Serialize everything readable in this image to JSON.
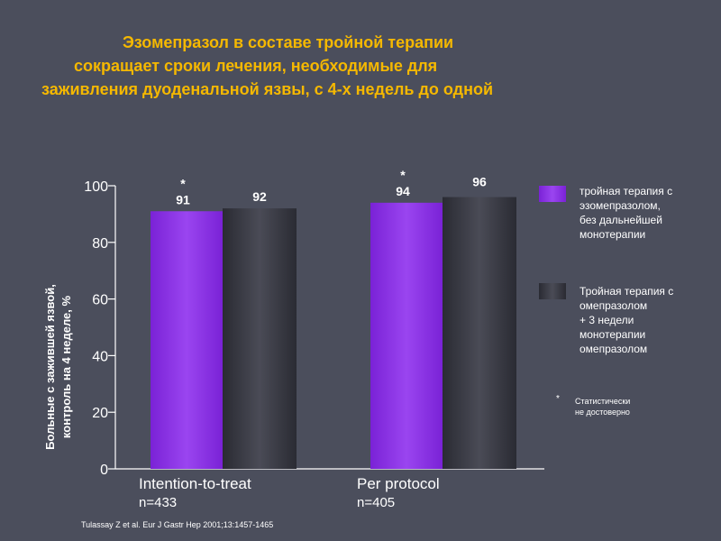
{
  "slide": {
    "title_lines": [
      "Эзомепразол в составе тройной терапии",
      "сокращает сроки лечения, необходимые для",
      "заживления дуоденальной язвы, с 4-х недель до одной"
    ],
    "source": "Tulassay Z et al. Eur J Gastr Hep 2001;13:1457-1465",
    "colors": {
      "background": "#4b4e5c",
      "title": "#f5b800",
      "esomeprazole_bar": "#8c33e6",
      "omeprazole_bar": "#3b3c45"
    }
  },
  "chart_data": {
    "type": "bar",
    "categories": [
      "Intention-to-treat",
      "Per protocol"
    ],
    "category_subtitles": [
      "n=433",
      "n=405"
    ],
    "series": [
      {
        "name": "тройная терапия с эзомепразолом, без дальнейшей монотерапии",
        "values": [
          91,
          94
        ],
        "markers": [
          "*",
          "*"
        ],
        "color": "#8c33e6"
      },
      {
        "name": "Тройная терапия с омепразолом + 3 недели монотерапии омепразолом",
        "values": [
          92,
          96
        ],
        "markers": [
          "",
          ""
        ],
        "color": "#3b3c45"
      }
    ],
    "ylabel": "Больные с зажившей язвой, контроль на 4 неделе, %",
    "ylabel_lines": [
      "Больные с зажившей язвой,",
      "контроль на 4 неделе, %"
    ],
    "ylim": [
      0,
      100
    ],
    "yticks": [
      0,
      20,
      40,
      60,
      80,
      100
    ],
    "legend": {
      "placement": "right",
      "entries": [
        "тройная терапия с\nэзомепразолом,\nбез дальнейшей\nмонотерапии",
        "Тройная терапия  с\nомепразолом\n+ 3 недели\nмонотерапии\nомепразолом"
      ],
      "footnote_marker": "*",
      "footnote_text": "Статистически\nне достоверно"
    }
  }
}
